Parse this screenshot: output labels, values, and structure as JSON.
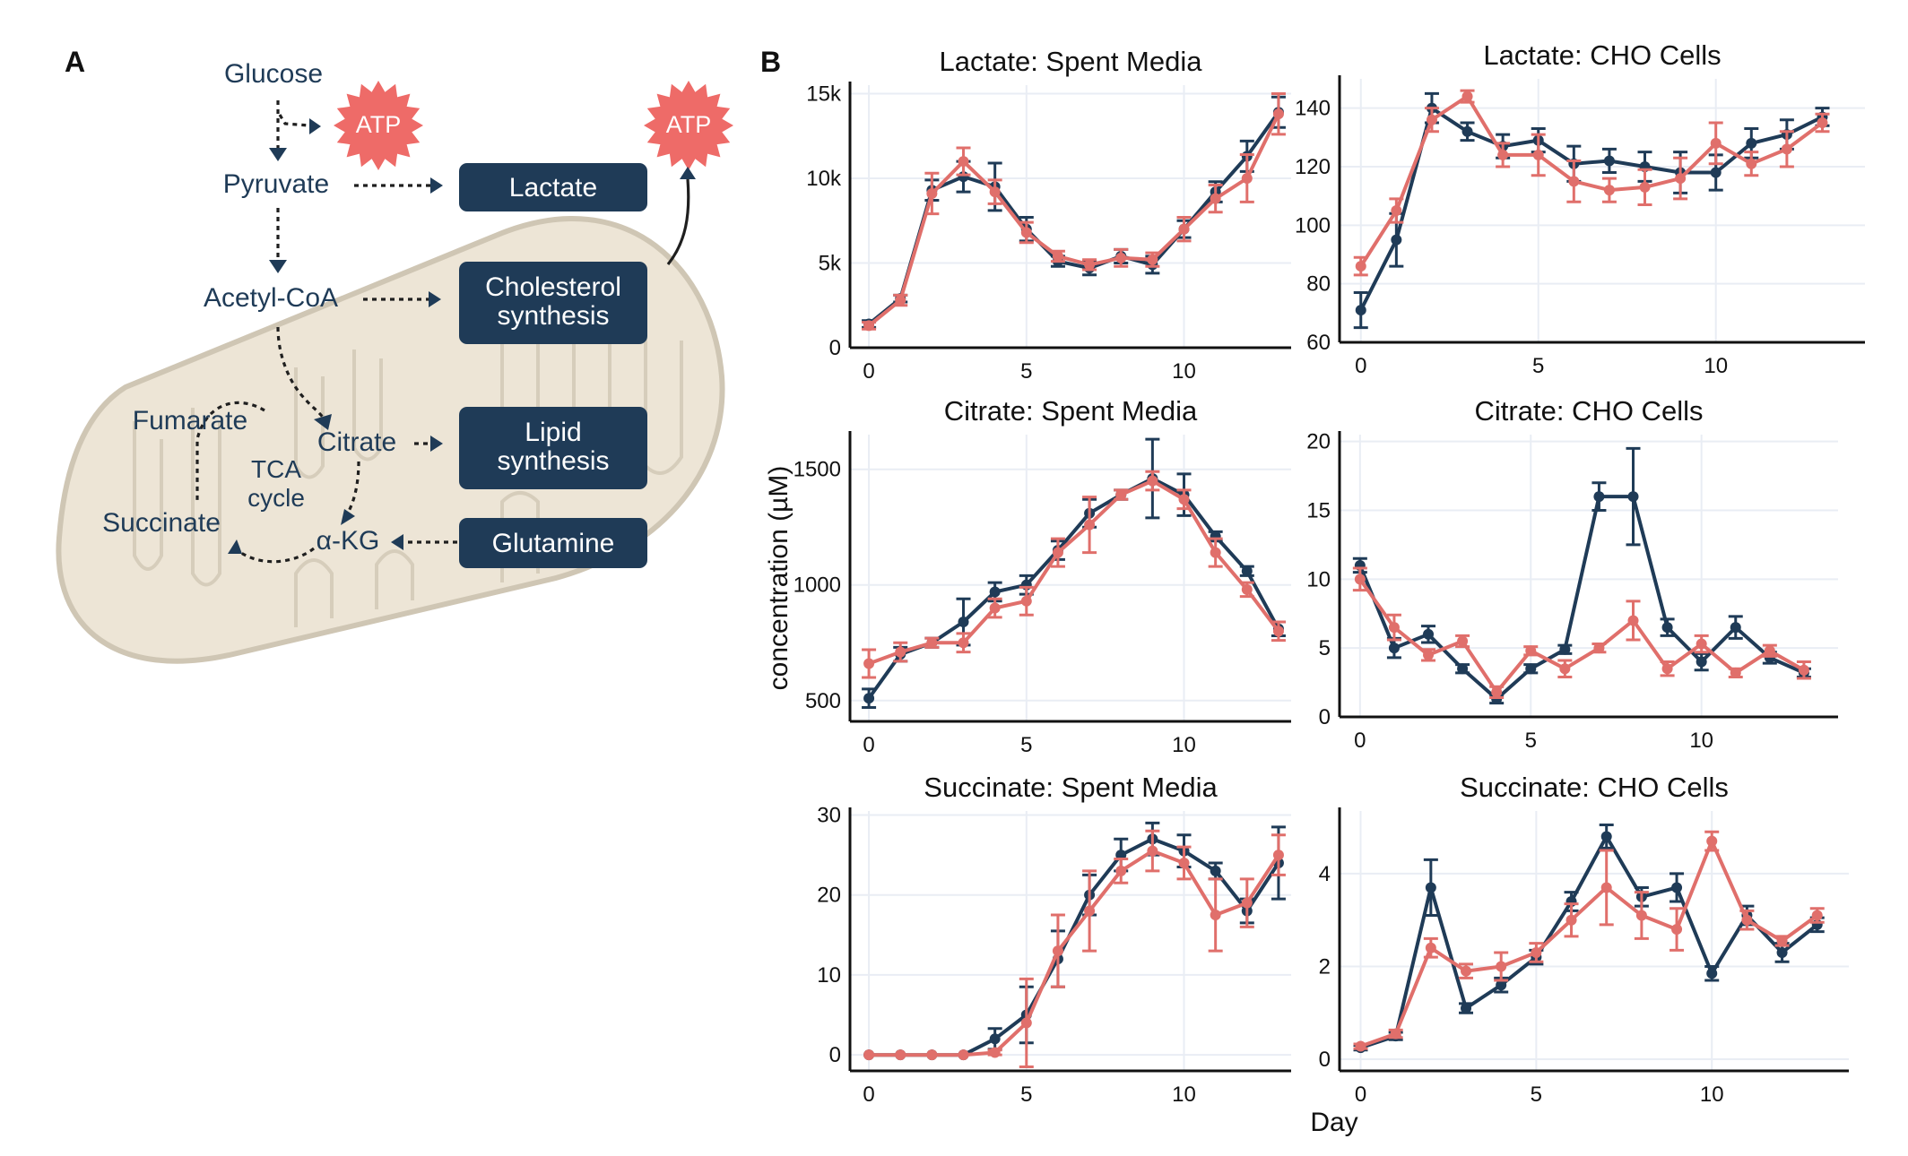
{
  "panel_labels": {
    "a": "A",
    "b": "B"
  },
  "colors": {
    "navy": "#1f3b57",
    "salmon": "#e06f6b",
    "atp": "#ee6b68",
    "mito_fill": "#ede5d6",
    "mito_stroke": "#cfc6b4",
    "grid": "#e9edf4",
    "text": "#111111"
  },
  "diagram": {
    "glucose": "Glucose",
    "pyruvate": "Pyruvate",
    "acetyl_coa": "Acetyl-CoA",
    "fumarate": "Fumarate",
    "citrate": "Citrate",
    "succinate": "Succinate",
    "akg": "α-KG",
    "tca_line1": "TCA",
    "tca_line2": "cycle",
    "atp1": "ATP",
    "atp2": "ATP",
    "lactate_box": "Lactate",
    "cholesterol_line1": "Cholesterol",
    "cholesterol_line2": "synthesis",
    "lipid_line1": "Lipid",
    "lipid_line2": "synthesis",
    "glutamine_box": "Glutamine"
  },
  "axes": {
    "ylabel": "concentration (µM)",
    "xlabel": "Day"
  },
  "chart_data": [
    {
      "type": "line",
      "title": "Lactate: Spent Media",
      "xlim": [
        -0.6,
        13.4
      ],
      "ylim": [
        0,
        15500
      ],
      "xticks": [
        0,
        5,
        10
      ],
      "yticks": [
        0,
        5000,
        10000,
        15000
      ],
      "ytick_labels": [
        "0",
        "5k",
        "10k",
        "15k"
      ],
      "x": [
        0,
        1,
        2,
        3,
        4,
        5,
        6,
        7,
        8,
        9,
        10,
        11,
        12,
        13
      ],
      "series": [
        {
          "name": "navy",
          "color": "#1f3b57",
          "values": [
            1400,
            2900,
            9300,
            10100,
            9500,
            7000,
            5100,
            4700,
            5400,
            4900,
            7000,
            9200,
            11300,
            13900
          ],
          "errors": [
            200,
            200,
            600,
            900,
            1400,
            700,
            300,
            400,
            400,
            500,
            500,
            600,
            900,
            900
          ]
        },
        {
          "name": "salmon",
          "color": "#e06f6b",
          "values": [
            1300,
            2800,
            9100,
            11000,
            9200,
            6800,
            5400,
            4900,
            5300,
            5200,
            7000,
            8800,
            10000,
            13800
          ],
          "errors": [
            200,
            300,
            1200,
            800,
            700,
            600,
            300,
            300,
            500,
            400,
            700,
            800,
            1400,
            1200
          ]
        }
      ]
    },
    {
      "type": "line",
      "title": "Lactate:  CHO  Cells",
      "xlim": [
        -0.6,
        14.2
      ],
      "ylim": [
        60,
        150
      ],
      "xticks": [
        0,
        5,
        10
      ],
      "yticks": [
        60,
        80,
        100,
        120,
        140
      ],
      "ytick_labels": [
        "60",
        "80",
        "100",
        "120",
        "140"
      ],
      "x": [
        0,
        1,
        2,
        3,
        4,
        5,
        6,
        7,
        8,
        9,
        10,
        11,
        12,
        13
      ],
      "series": [
        {
          "name": "navy",
          "color": "#1f3b57",
          "values": [
            71,
            95,
            140,
            132,
            127,
            129,
            121,
            122,
            120,
            118,
            118,
            128,
            131,
            137
          ],
          "errors": [
            6,
            9,
            5,
            3,
            4,
            4,
            6,
            4,
            5,
            7,
            6,
            5,
            5,
            3
          ]
        },
        {
          "name": "salmon",
          "color": "#e06f6b",
          "values": [
            86,
            105,
            136,
            144,
            124,
            124,
            115,
            112,
            113,
            116,
            128,
            121,
            126,
            135
          ],
          "errors": [
            3,
            4,
            4,
            2,
            4,
            7,
            7,
            4,
            6,
            7,
            7,
            4,
            6,
            3
          ]
        }
      ]
    },
    {
      "type": "line",
      "title": "Citrate: Spent Media",
      "xlim": [
        -0.6,
        13.4
      ],
      "ylim": [
        410,
        1650
      ],
      "xticks": [
        0,
        5,
        10
      ],
      "yticks": [
        500,
        1000,
        1500
      ],
      "ytick_labels": [
        "500",
        "1000",
        "1500"
      ],
      "x": [
        0,
        1,
        2,
        3,
        4,
        5,
        6,
        7,
        8,
        9,
        10,
        11,
        12,
        13
      ],
      "series": [
        {
          "name": "navy",
          "color": "#1f3b57",
          "values": [
            510,
            700,
            750,
            840,
            970,
            1000,
            1150,
            1310,
            1390,
            1460,
            1390,
            1210,
            1060,
            810
          ],
          "errors": [
            40,
            30,
            20,
            100,
            40,
            40,
            40,
            60,
            20,
            170,
            90,
            20,
            20,
            30
          ]
        },
        {
          "name": "salmon",
          "color": "#e06f6b",
          "values": [
            660,
            710,
            750,
            750,
            900,
            930,
            1140,
            1260,
            1390,
            1450,
            1370,
            1140,
            980,
            800
          ],
          "errors": [
            60,
            40,
            20,
            40,
            40,
            60,
            60,
            120,
            20,
            40,
            40,
            60,
            30,
            40
          ]
        }
      ]
    },
    {
      "type": "line",
      "title": "Citrate: CHO Cells",
      "xlim": [
        -0.6,
        14.0
      ],
      "ylim": [
        0,
        20.5
      ],
      "xticks": [
        0,
        5,
        10
      ],
      "yticks": [
        0,
        5,
        10,
        15,
        20
      ],
      "ytick_labels": [
        "0",
        "5",
        "10",
        "15",
        "20"
      ],
      "x": [
        0,
        1,
        2,
        3,
        4,
        5,
        6,
        7,
        8,
        9,
        10,
        11,
        12,
        13
      ],
      "series": [
        {
          "name": "navy",
          "color": "#1f3b57",
          "values": [
            11,
            5,
            6,
            3.5,
            1.3,
            3.5,
            4.9,
            16,
            16,
            6.5,
            4,
            6.5,
            4.3,
            3.2
          ],
          "errors": [
            0.5,
            0.7,
            0.6,
            0.3,
            0.3,
            0.3,
            0.3,
            1,
            3.5,
            0.6,
            0.6,
            0.8,
            0.4,
            0.3
          ]
        },
        {
          "name": "salmon",
          "color": "#e06f6b",
          "values": [
            10,
            6.5,
            4.5,
            5.5,
            1.8,
            4.8,
            3.5,
            5,
            7,
            3.5,
            5.3,
            3.2,
            4.8,
            3.4
          ],
          "errors": [
            0.8,
            0.9,
            0.4,
            0.4,
            0.4,
            0.3,
            0.6,
            0.3,
            1.4,
            0.5,
            0.6,
            0.3,
            0.4,
            0.6
          ]
        }
      ]
    },
    {
      "type": "line",
      "title": "Succinate: Spent Media",
      "xlim": [
        -0.6,
        13.4
      ],
      "ylim": [
        -2,
        30.5
      ],
      "xticks": [
        0,
        5,
        10
      ],
      "yticks": [
        0,
        10,
        20,
        30
      ],
      "ytick_labels": [
        "0",
        "10",
        "20",
        "30"
      ],
      "x": [
        0,
        1,
        2,
        3,
        4,
        5,
        6,
        7,
        8,
        9,
        10,
        11,
        12,
        13
      ],
      "series": [
        {
          "name": "navy",
          "color": "#1f3b57",
          "values": [
            0,
            0,
            0,
            0,
            2,
            5,
            12,
            20,
            25,
            27,
            25.5,
            23,
            18,
            24
          ],
          "errors": [
            0,
            0,
            0,
            0,
            1.3,
            3.5,
            3.5,
            2.5,
            2,
            2,
            2,
            1,
            1.5,
            4.5
          ]
        },
        {
          "name": "salmon",
          "color": "#e06f6b",
          "values": [
            0,
            0,
            0,
            0,
            0.3,
            4,
            13,
            18,
            23,
            25.5,
            24,
            17.5,
            19,
            25
          ],
          "errors": [
            0,
            0,
            0,
            0,
            0.3,
            5.5,
            4.5,
            5,
            1.5,
            2.5,
            2,
            4.5,
            3,
            2.5
          ]
        }
      ]
    },
    {
      "type": "line",
      "title": "Succinate:  CHO Cells",
      "xlim": [
        -0.6,
        13.9
      ],
      "ylim": [
        -0.25,
        5.35
      ],
      "xticks": [
        0,
        5,
        10
      ],
      "yticks": [
        0,
        2,
        4
      ],
      "ytick_labels": [
        "0",
        "2",
        "4"
      ],
      "x": [
        0,
        1,
        2,
        3,
        4,
        5,
        6,
        7,
        8,
        9,
        10,
        11,
        12,
        13
      ],
      "series": [
        {
          "name": "navy",
          "color": "#1f3b57",
          "values": [
            0.25,
            0.5,
            3.7,
            1.1,
            1.6,
            2.2,
            3.4,
            4.8,
            3.5,
            3.7,
            1.85,
            3.1,
            2.3,
            2.9
          ],
          "errors": [
            0.05,
            0.08,
            0.6,
            0.1,
            0.15,
            0.15,
            0.2,
            0.25,
            0.2,
            0.3,
            0.15,
            0.2,
            0.2,
            0.15
          ]
        },
        {
          "name": "salmon",
          "color": "#e06f6b",
          "values": [
            0.28,
            0.55,
            2.4,
            1.9,
            2.0,
            2.3,
            3.0,
            3.7,
            3.1,
            2.8,
            4.7,
            3.0,
            2.55,
            3.1
          ],
          "errors": [
            0.05,
            0.08,
            0.2,
            0.15,
            0.3,
            0.2,
            0.35,
            0.8,
            0.5,
            0.45,
            0.2,
            0.2,
            0.1,
            0.15
          ]
        }
      ]
    }
  ]
}
